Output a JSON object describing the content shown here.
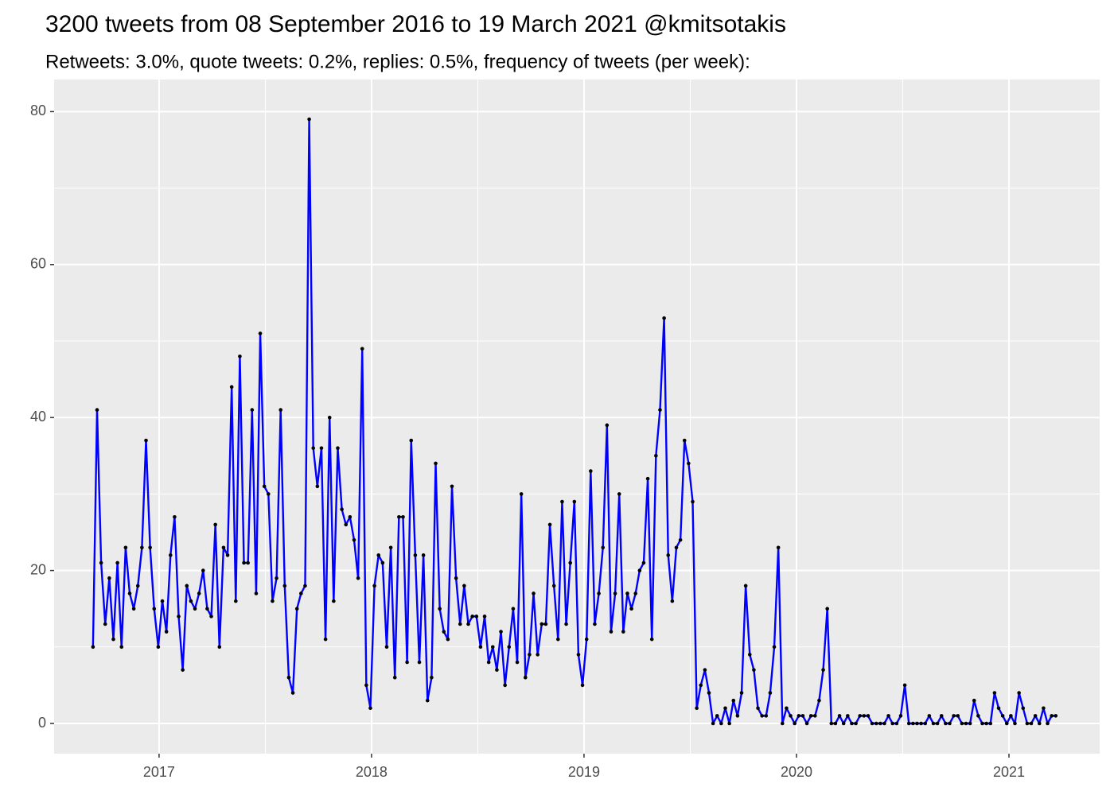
{
  "chart_data": {
    "type": "line",
    "title": "3200 tweets from 08 September 2016 to 19 March 2021 @kmitsotakis",
    "subtitle": "Retweets: 3.0%, quote tweets: 0.2%, replies: 0.5%, frequency of tweets (per week):",
    "color": "#0000ff",
    "point_color": "#000000",
    "grid": true,
    "xlim": [
      2016.506,
      2021.427
    ],
    "xticks": [
      2017,
      2018,
      2019,
      2020,
      2021
    ],
    "ylim": [
      -3.95,
      84.2
    ],
    "yticks": [
      0,
      20,
      40,
      60,
      80
    ],
    "x": [
      2016.689,
      2016.7082,
      2016.7274,
      2016.7466,
      2016.7658,
      2016.785,
      2016.8042,
      2016.8234,
      2016.8426,
      2016.8618,
      2016.881,
      2016.9002,
      2016.9194,
      2016.9386,
      2016.9578,
      2016.977,
      2016.9962,
      2017.0154,
      2017.0346,
      2017.0538,
      2017.073,
      2017.0922,
      2017.1114,
      2017.1306,
      2017.1498,
      2017.169,
      2017.1882,
      2017.2074,
      2017.2266,
      2017.2458,
      2017.265,
      2017.2842,
      2017.3034,
      2017.3226,
      2017.3418,
      2017.361,
      2017.3802,
      2017.3994,
      2017.4186,
      2017.4378,
      2017.457,
      2017.4762,
      2017.4954,
      2017.5146,
      2017.5338,
      2017.553,
      2017.5722,
      2017.5914,
      2017.6106,
      2017.6298,
      2017.649,
      2017.6682,
      2017.6874,
      2017.7066,
      2017.7258,
      2017.745,
      2017.7642,
      2017.7834,
      2017.8026,
      2017.8218,
      2017.841,
      2017.8602,
      2017.8794,
      2017.8986,
      2017.9178,
      2017.937,
      2017.9562,
      2017.9754,
      2017.9946,
      2018.0138,
      2018.033,
      2018.0522,
      2018.0714,
      2018.0906,
      2018.1098,
      2018.129,
      2018.1482,
      2018.1674,
      2018.1866,
      2018.2058,
      2018.225,
      2018.2442,
      2018.2634,
      2018.2826,
      2018.3018,
      2018.321,
      2018.3402,
      2018.3594,
      2018.3786,
      2018.3978,
      2018.417,
      2018.4362,
      2018.4554,
      2018.4746,
      2018.4938,
      2018.513,
      2018.5322,
      2018.5514,
      2018.5706,
      2018.5898,
      2018.609,
      2018.6282,
      2018.6474,
      2018.6666,
      2018.6858,
      2018.705,
      2018.7242,
      2018.7434,
      2018.7626,
      2018.7818,
      2018.801,
      2018.8202,
      2018.8394,
      2018.8586,
      2018.8778,
      2018.897,
      2018.9162,
      2018.9354,
      2018.9546,
      2018.9738,
      2018.993,
      2019.0122,
      2019.0314,
      2019.0506,
      2019.0698,
      2019.089,
      2019.1082,
      2019.1274,
      2019.1466,
      2019.1658,
      2019.185,
      2019.2042,
      2019.2234,
      2019.2426,
      2019.2618,
      2019.281,
      2019.3002,
      2019.3194,
      2019.3386,
      2019.3578,
      2019.377,
      2019.3962,
      2019.4154,
      2019.4346,
      2019.4538,
      2019.473,
      2019.4922,
      2019.5114,
      2019.5306,
      2019.5498,
      2019.569,
      2019.5882,
      2019.6074,
      2019.6266,
      2019.6458,
      2019.665,
      2019.6842,
      2019.7034,
      2019.7226,
      2019.7418,
      2019.761,
      2019.7802,
      2019.7994,
      2019.8186,
      2019.8378,
      2019.857,
      2019.8762,
      2019.8954,
      2019.9146,
      2019.9338,
      2019.953,
      2019.9722,
      2019.9914,
      2020.0106,
      2020.0298,
      2020.049,
      2020.0682,
      2020.0874,
      2020.1066,
      2020.1258,
      2020.145,
      2020.1642,
      2020.1834,
      2020.2026,
      2020.2218,
      2020.241,
      2020.2602,
      2020.2794,
      2020.2986,
      2020.3178,
      2020.337,
      2020.3562,
      2020.3754,
      2020.3946,
      2020.4138,
      2020.433,
      2020.4522,
      2020.4714,
      2020.4906,
      2020.5098,
      2020.529,
      2020.5482,
      2020.5674,
      2020.5866,
      2020.6058,
      2020.625,
      2020.6442,
      2020.6634,
      2020.6826,
      2020.7018,
      2020.721,
      2020.7402,
      2020.7594,
      2020.7786,
      2020.7978,
      2020.817,
      2020.8362,
      2020.8554,
      2020.8746,
      2020.8938,
      2020.913,
      2020.9322,
      2020.9514,
      2020.9706,
      2020.9898,
      2021.009,
      2021.0282,
      2021.0474,
      2021.0666,
      2021.0858,
      2021.105,
      2021.1242,
      2021.1434,
      2021.1626,
      2021.1818,
      2021.201,
      2021.2202
    ],
    "values": [
      10,
      41,
      21,
      13,
      19,
      11,
      21,
      10,
      23,
      17,
      15,
      18,
      23,
      37,
      23,
      15,
      10,
      16,
      12,
      22,
      27,
      14,
      7,
      18,
      16,
      15,
      17,
      20,
      15,
      14,
      26,
      10,
      23,
      22,
      44,
      16,
      48,
      21,
      21,
      41,
      17,
      51,
      31,
      30,
      16,
      19,
      41,
      18,
      6,
      4,
      15,
      17,
      18,
      79,
      36,
      31,
      36,
      11,
      40,
      16,
      36,
      28,
      26,
      27,
      24,
      19,
      49,
      5,
      2,
      18,
      22,
      21,
      10,
      23,
      6,
      27,
      27,
      8,
      37,
      22,
      8,
      22,
      3,
      6,
      34,
      15,
      12,
      11,
      31,
      19,
      13,
      18,
      13,
      14,
      14,
      10,
      14,
      8,
      10,
      7,
      12,
      5,
      10,
      15,
      8,
      30,
      6,
      9,
      17,
      9,
      13,
      13,
      26,
      18,
      11,
      29,
      13,
      21,
      29,
      9,
      5,
      11,
      33,
      13,
      17,
      23,
      39,
      12,
      17,
      30,
      12,
      17,
      15,
      17,
      20,
      21,
      32,
      11,
      35,
      41,
      53,
      22,
      16,
      23,
      24,
      37,
      34,
      29,
      2,
      5,
      7,
      4,
      0,
      1,
      0,
      2,
      0,
      3,
      1,
      4,
      18,
      9,
      7,
      2,
      1,
      1,
      4,
      10,
      23,
      0,
      2,
      1,
      0,
      1,
      1,
      0,
      1,
      1,
      3,
      7,
      15,
      0,
      0,
      1,
      0,
      1,
      0,
      0,
      1,
      1,
      1,
      0,
      0,
      0,
      0,
      1,
      0,
      0,
      1,
      5,
      0,
      0,
      0,
      0,
      0,
      1,
      0,
      0,
      1,
      0,
      0,
      1,
      1,
      0,
      0,
      0,
      3,
      1,
      0,
      0,
      0,
      4,
      2,
      1,
      0,
      1,
      0,
      4,
      2,
      0,
      0,
      1,
      0,
      2,
      0,
      1,
      1
    ]
  }
}
